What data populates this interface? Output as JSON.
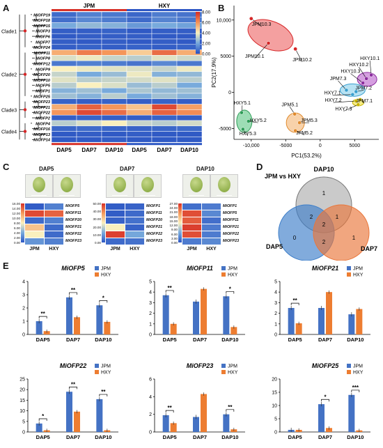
{
  "figure": {
    "panels": {
      "A": "A",
      "B": "B",
      "C": "C",
      "D": "D",
      "E": "E"
    },
    "colors": {
      "jpm_blue": "#4472c4",
      "hxy_orange": "#ed7d31",
      "heat_red": "#d73027",
      "heat_blue": "#2c56c4"
    }
  },
  "panel_a": {
    "groups": [
      "JPM",
      "HXY"
    ],
    "genes": [
      "MiOFP19",
      "MiOFP18",
      "MiOFP15",
      "MiOFP3",
      "MiOFP6",
      "MiOFP7",
      "MiOFP24",
      "MiOFP11",
      "MiOFP8",
      "MiOFP12",
      "MiOFP9",
      "MiOFP20",
      "MiOFP10",
      "MiOFP5",
      "MiOFP1",
      "MiOFP25",
      "MiOFP23",
      "MiOFP21",
      "MiOFP22",
      "MiOFP2",
      "MiOFP4",
      "MiOFP16",
      "MiOFP13",
      "MiOFP14"
    ],
    "clades": [
      "Clade1",
      "Clade2",
      "Clade3",
      "Clade4"
    ],
    "columns": [
      "DAP5",
      "DAP7",
      "DAP10",
      "DAP5",
      "DAP7",
      "DAP10"
    ],
    "legend_ticks": [
      "8.00",
      "6.00",
      "4.00",
      "2.00",
      "0.00"
    ],
    "values": [
      [
        0.5,
        1.0,
        0.8,
        0.4,
        0.9,
        0.7
      ],
      [
        0.6,
        1.2,
        0.9,
        0.5,
        1.1,
        0.8
      ],
      [
        2.0,
        2.4,
        2.2,
        1.6,
        2.0,
        1.8
      ],
      [
        0.2,
        0.2,
        0.3,
        0.1,
        0.2,
        0.2
      ],
      [
        0.1,
        0.2,
        0.2,
        0.2,
        0.1,
        0.1
      ],
      [
        0.2,
        0.1,
        0.2,
        0.1,
        0.2,
        0.1
      ],
      [
        0.2,
        0.3,
        0.2,
        0.3,
        0.2,
        0.3
      ],
      [
        5.5,
        6.5,
        6.0,
        4.8,
        6.8,
        5.5
      ],
      [
        3.5,
        3.8,
        3.2,
        3.0,
        3.6,
        3.3
      ],
      [
        0.8,
        1.0,
        0.9,
        0.7,
        1.2,
        0.8
      ],
      [
        4.0,
        3.8,
        3.6,
        3.5,
        3.2,
        3.8
      ],
      [
        3.2,
        2.0,
        2.5,
        3.8,
        2.2,
        2.4
      ],
      [
        3.6,
        3.0,
        3.2,
        3.4,
        3.6,
        3.0
      ],
      [
        3.0,
        4.0,
        3.5,
        2.5,
        3.0,
        2.0
      ],
      [
        2.2,
        2.6,
        2.0,
        2.8,
        2.4,
        2.6
      ],
      [
        2.6,
        2.2,
        3.0,
        2.0,
        2.6,
        2.2
      ],
      [
        0.3,
        0.2,
        0.3,
        0.2,
        0.3,
        0.2
      ],
      [
        5.5,
        7.0,
        6.0,
        5.0,
        7.5,
        5.8
      ],
      [
        6.0,
        7.5,
        6.8,
        5.5,
        7.0,
        6.2
      ],
      [
        0.2,
        0.3,
        0.2,
        0.2,
        0.3,
        0.2
      ],
      [
        3.0,
        3.5,
        4.0,
        3.2,
        3.0,
        3.4
      ],
      [
        0.4,
        0.5,
        0.4,
        0.3,
        0.4,
        0.5
      ],
      [
        0.1,
        0.2,
        0.1,
        0.2,
        0.1,
        0.1
      ],
      [
        0.1,
        0.1,
        0.2,
        0.1,
        0.1,
        0.1
      ]
    ]
  },
  "panel_b": {
    "xlabel": "PC1(53.2%)",
    "ylabel": "PC2(17.9%)",
    "xticks": [
      "-10,000",
      "-5000",
      "0",
      "5000"
    ],
    "yticks": [
      "10,000",
      "5000",
      "0",
      "-5000"
    ],
    "points": [
      "JPM10.3",
      "JPM10.1",
      "JPM10.2",
      "HXY10.1",
      "HXY10.2",
      "HXY10.3",
      "JPM7.3",
      "JPM7.2",
      "HXY7.1",
      "HXY7.2",
      "JPM7.1",
      "HXY7.3",
      "HXY5.1",
      "HXY5.2",
      "HXY5.3",
      "JPM5.1",
      "JPM5.3",
      "JPM5.2"
    ]
  },
  "panel_c": {
    "stages": [
      "DAP5",
      "DAP7",
      "DAP10"
    ],
    "cols": [
      "JPM",
      "HXY"
    ],
    "genes": [
      [
        "MiOFP5",
        "MiOFP11",
        "MiOFP20",
        "MiOFP21",
        "MiOFP22",
        "MiOFP23"
      ],
      [
        "MiOFP1",
        "MiOFP11",
        "MiOFP20",
        "MiOFP21",
        "MiOFP22",
        "MiOFP23"
      ],
      [
        "MiOFP1",
        "MiOFP5",
        "MiOFP11",
        "MiOFP21",
        "MiOFP22",
        "MiOFP23"
      ]
    ],
    "legend": [
      [
        "16.00",
        "14.00",
        "12.00",
        "10.00",
        "8.00",
        "6.00",
        "4.00",
        "2.00",
        "0.00"
      ],
      [
        "50.00",
        "40.00",
        "30.00",
        "20.00",
        "10.00",
        "0.00"
      ],
      [
        "27.00",
        "24.00",
        "21.00",
        "18.00",
        "15.00",
        "12.00",
        "9.00",
        "6.00",
        "3.00",
        "0.00"
      ]
    ]
  },
  "panel_d": {
    "title": "JPM vs HXY",
    "sets": [
      "DAP10",
      "DAP5",
      "DAP7"
    ],
    "counts": {
      "dap10_only": "1",
      "dap5_only": "0",
      "dap7_only": "1",
      "d5_d10": "2",
      "d7_d10": "1",
      "d5_d7": "2",
      "all": "2"
    }
  },
  "panel_e": {
    "legend": [
      "JPM",
      "HXY"
    ],
    "charts": [
      {
        "title": "MiOFP5",
        "yticks": [
          "4",
          "3",
          "2",
          "1",
          "0"
        ],
        "jpm": [
          1.0,
          2.8,
          2.2
        ],
        "hxy": [
          0.25,
          1.3,
          0.95
        ],
        "sig": [
          "**",
          "**",
          "*"
        ]
      },
      {
        "title": "MiOFP11",
        "yticks": [
          "5",
          "4",
          "3",
          "2",
          "1",
          "0"
        ],
        "jpm": [
          3.7,
          3.1,
          3.6
        ],
        "hxy": [
          1.0,
          4.3,
          0.7
        ],
        "sig": [
          "**",
          "",
          "*"
        ]
      },
      {
        "title": "MiOFP21",
        "yticks": [
          "5",
          "4",
          "3",
          "2",
          "1",
          "0"
        ],
        "jpm": [
          2.5,
          2.5,
          1.9
        ],
        "hxy": [
          1.05,
          4.0,
          2.4
        ],
        "sig": [
          "**",
          "",
          ""
        ]
      },
      {
        "title": "MiOFP22",
        "yticks": [
          "25",
          "20",
          "15",
          "10",
          "5",
          "0"
        ],
        "jpm": [
          4.0,
          19.0,
          15.5
        ],
        "hxy": [
          0.8,
          9.6,
          0.8
        ],
        "sig": [
          "*",
          "**",
          "**"
        ]
      },
      {
        "title": "MiOFP23",
        "yticks": [
          "6",
          "4",
          "2",
          "0"
        ],
        "jpm": [
          1.9,
          1.7,
          2.0
        ],
        "hxy": [
          1.0,
          4.3,
          0.3
        ],
        "sig": [
          "**",
          "",
          "**"
        ]
      },
      {
        "title": "MiOFP25",
        "yticks": [
          "20",
          "15",
          "10",
          "5",
          "0"
        ],
        "jpm": [
          0.8,
          10.5,
          14.0
        ],
        "hxy": [
          0.8,
          1.5,
          0.6
        ],
        "sig": [
          "",
          "*",
          "***"
        ]
      }
    ],
    "categories": [
      "DAP5",
      "DAP7",
      "DAP10"
    ]
  }
}
